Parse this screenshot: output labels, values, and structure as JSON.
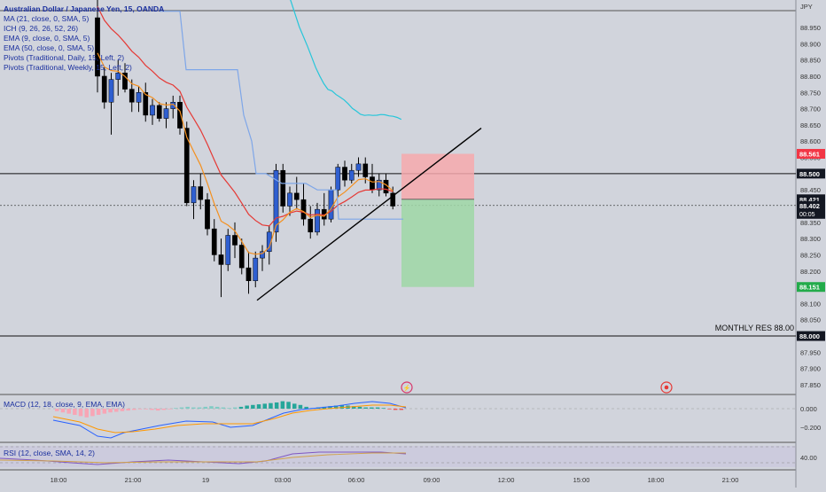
{
  "symbol_title": "Australian Dollar / Japanese Yen, 15, OANDA",
  "indicators": [
    "MA (21, close, 0, SMA, 5)",
    "ICH (9, 26, 26, 52, 26)",
    "EMA (9, close, 0, SMA, 5)",
    "EMA (50, close, 0, SMA, 5)",
    "Pivots (Traditional, Daily, 15, Left, 2)",
    "Pivots (Traditional, Weekly, 15, Left, 2)"
  ],
  "currency": "JPY",
  "monthly_note": "MONTHLY RES 88.00",
  "macd_label": "MACD (12, 18, close, 9, EMA, EMA)",
  "rsi_label": "RSI (12, close, SMA, 14, 2)",
  "price_tags": {
    "stop": "88.561",
    "level_high": "88.500",
    "ask": "88.421",
    "last": "88.402",
    "countdown": "00:05",
    "target": "88.151",
    "level_low": "88.000"
  },
  "colors": {
    "bull": "#2f5fd0",
    "bear": "#000000",
    "ma": "#e53935",
    "ema9": "#f4901f",
    "ema50": "#26c6da",
    "ichimoku": "#7ea6e8",
    "stop_zone": "#f7a9ad",
    "target_zone": "#9fd7a6",
    "macd_line": "#2962ff",
    "signal_line": "#ff9800",
    "rsi_line": "#7e57c2"
  },
  "chart_data": {
    "type": "candlestick",
    "title": "Australian Dollar / Japanese Yen, 15, OANDA",
    "x_ticks": [
      "18:00",
      "21:00",
      "19",
      "03:00",
      "06:00",
      "09:00",
      "12:00",
      "15:00",
      "18:00",
      "21:00"
    ],
    "y_ticks": [
      "88.950",
      "88.900",
      "88.850",
      "88.800",
      "88.750",
      "88.700",
      "88.650",
      "88.600",
      "88.550",
      "88.500",
      "88.450",
      "88.400",
      "88.350",
      "88.300",
      "88.250",
      "88.200",
      "88.150",
      "88.100",
      "88.050",
      "88.000",
      "87.950",
      "87.900",
      "87.850"
    ],
    "ylim": [
      87.82,
      88.99
    ],
    "candles": [
      {
        "o": 88.98,
        "h": 89.05,
        "l": 88.75,
        "c": 88.8
      },
      {
        "o": 88.8,
        "h": 88.83,
        "l": 88.7,
        "c": 88.72
      },
      {
        "o": 88.72,
        "h": 88.81,
        "l": 88.62,
        "c": 88.79
      },
      {
        "o": 88.79,
        "h": 88.85,
        "l": 88.74,
        "c": 88.81
      },
      {
        "o": 88.81,
        "h": 88.84,
        "l": 88.75,
        "c": 88.76
      },
      {
        "o": 88.76,
        "h": 88.79,
        "l": 88.69,
        "c": 88.72
      },
      {
        "o": 88.72,
        "h": 88.77,
        "l": 88.69,
        "c": 88.75
      },
      {
        "o": 88.75,
        "h": 88.78,
        "l": 88.66,
        "c": 88.68
      },
      {
        "o": 88.68,
        "h": 88.73,
        "l": 88.65,
        "c": 88.71
      },
      {
        "o": 88.71,
        "h": 88.72,
        "l": 88.66,
        "c": 88.67
      },
      {
        "o": 88.67,
        "h": 88.72,
        "l": 88.64,
        "c": 88.7
      },
      {
        "o": 88.7,
        "h": 88.74,
        "l": 88.67,
        "c": 88.72
      },
      {
        "o": 88.72,
        "h": 88.74,
        "l": 88.62,
        "c": 88.64
      },
      {
        "o": 88.64,
        "h": 88.66,
        "l": 88.4,
        "c": 88.41
      },
      {
        "o": 88.41,
        "h": 88.48,
        "l": 88.36,
        "c": 88.46
      },
      {
        "o": 88.46,
        "h": 88.5,
        "l": 88.39,
        "c": 88.42
      },
      {
        "o": 88.42,
        "h": 88.44,
        "l": 88.31,
        "c": 88.33
      },
      {
        "o": 88.33,
        "h": 88.36,
        "l": 88.23,
        "c": 88.25
      },
      {
        "o": 88.25,
        "h": 88.3,
        "l": 88.12,
        "c": 88.22
      },
      {
        "o": 88.22,
        "h": 88.33,
        "l": 88.2,
        "c": 88.31
      },
      {
        "o": 88.31,
        "h": 88.35,
        "l": 88.24,
        "c": 88.28
      },
      {
        "o": 88.28,
        "h": 88.3,
        "l": 88.19,
        "c": 88.21
      },
      {
        "o": 88.21,
        "h": 88.26,
        "l": 88.13,
        "c": 88.17
      },
      {
        "o": 88.17,
        "h": 88.26,
        "l": 88.15,
        "c": 88.24
      },
      {
        "o": 88.24,
        "h": 88.28,
        "l": 88.2,
        "c": 88.26
      },
      {
        "o": 88.26,
        "h": 88.34,
        "l": 88.22,
        "c": 88.32
      },
      {
        "o": 88.32,
        "h": 88.53,
        "l": 88.29,
        "c": 88.51
      },
      {
        "o": 88.51,
        "h": 88.53,
        "l": 88.38,
        "c": 88.4
      },
      {
        "o": 88.4,
        "h": 88.46,
        "l": 88.37,
        "c": 88.44
      },
      {
        "o": 88.44,
        "h": 88.49,
        "l": 88.39,
        "c": 88.42
      },
      {
        "o": 88.42,
        "h": 88.47,
        "l": 88.34,
        "c": 88.36
      },
      {
        "o": 88.36,
        "h": 88.4,
        "l": 88.3,
        "c": 88.32
      },
      {
        "o": 88.32,
        "h": 88.41,
        "l": 88.31,
        "c": 88.39
      },
      {
        "o": 88.39,
        "h": 88.44,
        "l": 88.34,
        "c": 88.36
      },
      {
        "o": 88.36,
        "h": 88.46,
        "l": 88.35,
        "c": 88.45
      },
      {
        "o": 88.45,
        "h": 88.53,
        "l": 88.43,
        "c": 88.52
      },
      {
        "o": 88.52,
        "h": 88.54,
        "l": 88.46,
        "c": 88.48
      },
      {
        "o": 88.48,
        "h": 88.53,
        "l": 88.47,
        "c": 88.51
      },
      {
        "o": 88.51,
        "h": 88.55,
        "l": 88.49,
        "c": 88.53
      },
      {
        "o": 88.53,
        "h": 88.55,
        "l": 88.47,
        "c": 88.49
      },
      {
        "o": 88.49,
        "h": 88.53,
        "l": 88.44,
        "c": 88.45
      },
      {
        "o": 88.45,
        "h": 88.5,
        "l": 88.43,
        "c": 88.48
      },
      {
        "o": 88.48,
        "h": 88.5,
        "l": 88.43,
        "c": 88.44
      },
      {
        "o": 88.44,
        "h": 88.46,
        "l": 88.39,
        "c": 88.4
      }
    ]
  }
}
